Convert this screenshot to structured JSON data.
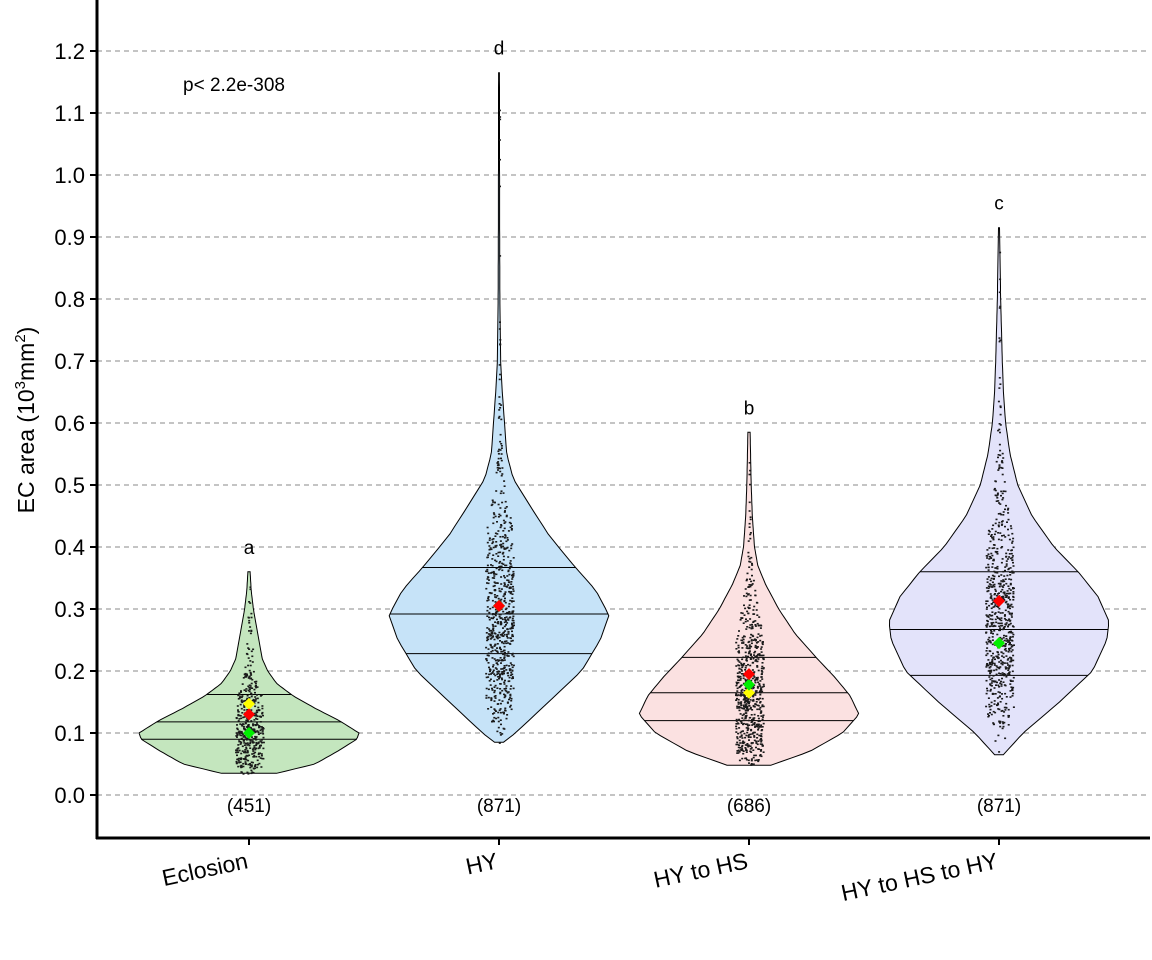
{
  "chart_data": {
    "type": "violin",
    "ylabel": {
      "main": "EC area (10",
      "sup1": "3",
      "mid": "mm",
      "sup2": "2",
      "end": ")"
    },
    "ylim": [
      -0.07,
      1.27
    ],
    "yticks": [
      "0.0",
      "0.1",
      "0.2",
      "0.3",
      "0.4",
      "0.5",
      "0.6",
      "0.7",
      "0.8",
      "0.9",
      "1.0",
      "1.1",
      "1.2"
    ],
    "grid": true,
    "annotation": "p<  2.2e-308",
    "colors": {
      "mean": "#ff0000",
      "median": "#00ee00",
      "extra": "#ffff00"
    },
    "groups": [
      {
        "label": "Eclosion",
        "n": "(451)",
        "letter": "a",
        "fill": "#c4e6be",
        "min": 0.035,
        "max": 0.36,
        "q1": 0.09,
        "median": 0.118,
        "q3": 0.162,
        "mean": 0.13,
        "median_point": 0.1,
        "extra_point": 0.147,
        "profile": [
          [
            0.035,
            0.25
          ],
          [
            0.05,
            0.6
          ],
          [
            0.07,
            0.8
          ],
          [
            0.09,
            0.98
          ],
          [
            0.1,
            1.0
          ],
          [
            0.12,
            0.82
          ],
          [
            0.14,
            0.6
          ],
          [
            0.16,
            0.4
          ],
          [
            0.18,
            0.25
          ],
          [
            0.2,
            0.17
          ],
          [
            0.22,
            0.12
          ],
          [
            0.24,
            0.1
          ],
          [
            0.27,
            0.07
          ],
          [
            0.3,
            0.04
          ],
          [
            0.33,
            0.02
          ],
          [
            0.36,
            0.01
          ]
        ]
      },
      {
        "label": "HY",
        "n": "(871)",
        "letter": "d",
        "fill": "#c6e3f8",
        "min": 0.085,
        "max": 1.165,
        "q1": 0.228,
        "median": 0.292,
        "q3": 0.367,
        "mean": 0.305,
        "median_point": 0.305,
        "extra_point": 0.305,
        "profile": [
          [
            0.085,
            0.04
          ],
          [
            0.1,
            0.15
          ],
          [
            0.15,
            0.45
          ],
          [
            0.2,
            0.75
          ],
          [
            0.25,
            0.92
          ],
          [
            0.29,
            1.0
          ],
          [
            0.33,
            0.88
          ],
          [
            0.37,
            0.68
          ],
          [
            0.42,
            0.45
          ],
          [
            0.47,
            0.27
          ],
          [
            0.51,
            0.13
          ],
          [
            0.55,
            0.07
          ],
          [
            0.6,
            0.05
          ],
          [
            0.65,
            0.03
          ],
          [
            0.7,
            0.015
          ],
          [
            0.8,
            0.008
          ],
          [
            0.9,
            0.006
          ],
          [
            1.0,
            0.005
          ],
          [
            1.165,
            0.004
          ]
        ]
      },
      {
        "label": "HY to HS",
        "n": "(686)",
        "letter": "b",
        "fill": "#fbe1e1",
        "min": 0.048,
        "max": 0.585,
        "q1": 0.12,
        "median": 0.165,
        "q3": 0.222,
        "mean": 0.195,
        "median_point": 0.178,
        "extra_point": 0.165,
        "profile": [
          [
            0.048,
            0.2
          ],
          [
            0.07,
            0.55
          ],
          [
            0.1,
            0.85
          ],
          [
            0.13,
            1.0
          ],
          [
            0.16,
            0.92
          ],
          [
            0.19,
            0.78
          ],
          [
            0.22,
            0.62
          ],
          [
            0.26,
            0.42
          ],
          [
            0.3,
            0.27
          ],
          [
            0.34,
            0.15
          ],
          [
            0.37,
            0.08
          ],
          [
            0.4,
            0.05
          ],
          [
            0.45,
            0.03
          ],
          [
            0.5,
            0.02
          ],
          [
            0.585,
            0.01
          ]
        ]
      },
      {
        "label": "HY to HS to HY",
        "n": "(871)",
        "letter": "c",
        "fill": "#e3e3fa",
        "min": 0.065,
        "max": 0.915,
        "q1": 0.193,
        "median": 0.267,
        "q3": 0.36,
        "mean": 0.313,
        "median_point": 0.245,
        "extra_point": 0.245,
        "profile": [
          [
            0.065,
            0.04
          ],
          [
            0.1,
            0.22
          ],
          [
            0.15,
            0.55
          ],
          [
            0.2,
            0.85
          ],
          [
            0.25,
            0.98
          ],
          [
            0.28,
            1.0
          ],
          [
            0.32,
            0.9
          ],
          [
            0.36,
            0.72
          ],
          [
            0.4,
            0.5
          ],
          [
            0.45,
            0.3
          ],
          [
            0.5,
            0.17
          ],
          [
            0.55,
            0.1
          ],
          [
            0.6,
            0.06
          ],
          [
            0.65,
            0.04
          ],
          [
            0.7,
            0.03
          ],
          [
            0.8,
            0.015
          ],
          [
            0.915,
            0.005
          ]
        ]
      }
    ]
  }
}
